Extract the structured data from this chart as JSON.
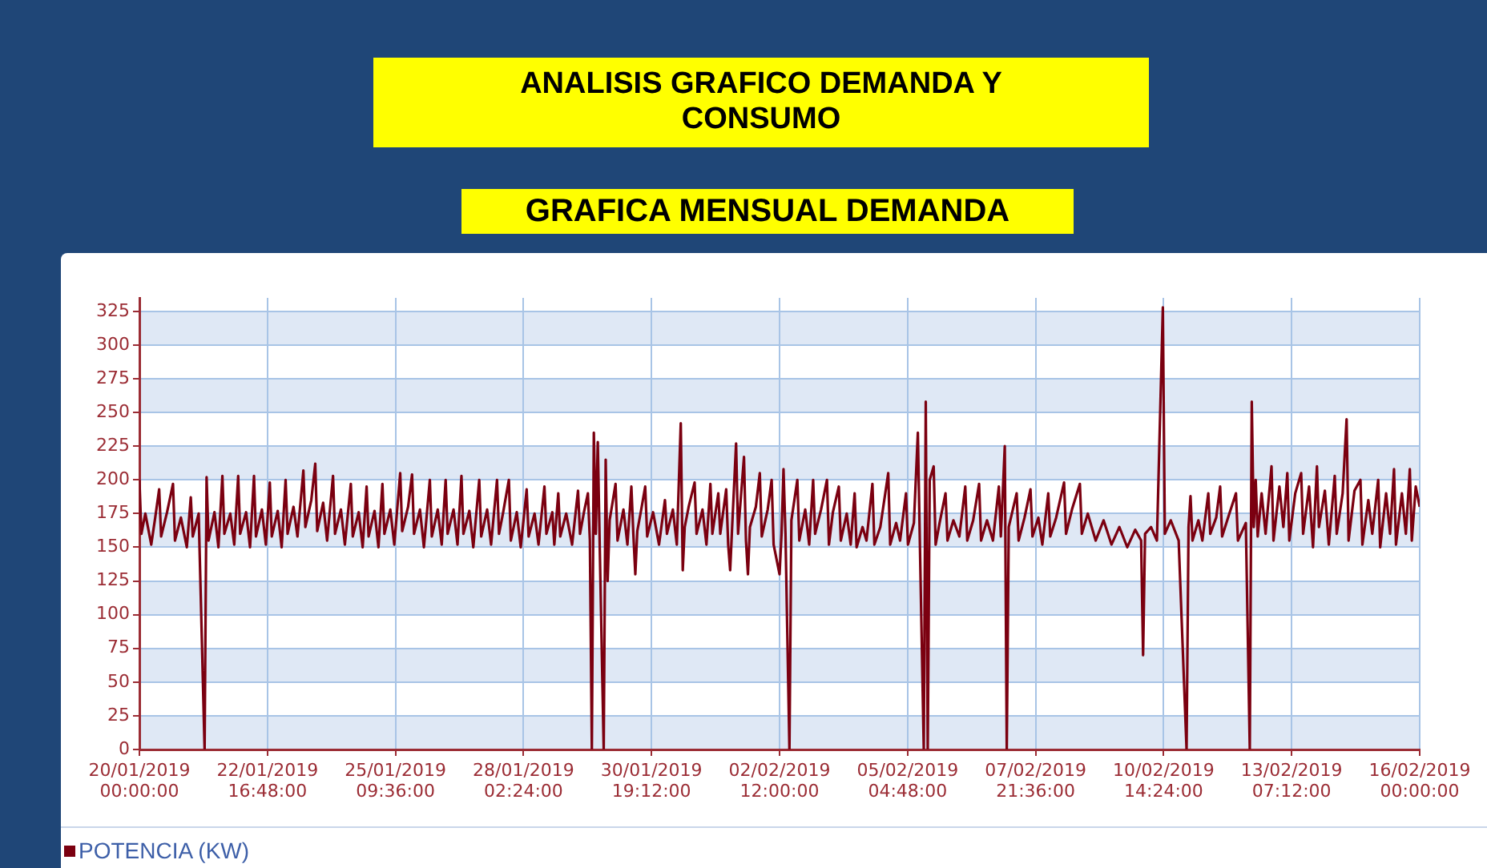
{
  "chart_data": {
    "type": "line",
    "title": "ANALISIS GRAFICO DEMANDA Y CONSUMO",
    "subtitle": "GRAFICA MENSUAL DEMANDA",
    "xlim": [
      "2019-01-20T00:00",
      "2019-02-16T00:00"
    ],
    "ylim": [
      0,
      335
    ],
    "xticks": [
      {
        "value": "2019-01-20T00:00",
        "label": "20/01/2019 00:00:00"
      },
      {
        "value": "2019-01-22T16:48",
        "label": "22/01/2019 16:48:00"
      },
      {
        "value": "2019-01-25T09:36",
        "label": "25/01/2019 09:36:00"
      },
      {
        "value": "2019-01-28T02:24",
        "label": "28/01/2019 02:24:00"
      },
      {
        "value": "2019-01-30T19:12",
        "label": "30/01/2019 19:12:00"
      },
      {
        "value": "2019-02-02T12:00",
        "label": "02/02/2019 12:00:00"
      },
      {
        "value": "2019-02-05T04:48",
        "label": "05/02/2019 04:48:00"
      },
      {
        "value": "2019-02-07T21:36",
        "label": "07/02/2019 21:36:00"
      },
      {
        "value": "2019-02-10T14:24",
        "label": "10/02/2019 14:24:00"
      },
      {
        "value": "2019-02-13T07:12",
        "label": "13/02/2019 07:12:00"
      },
      {
        "value": "2019-02-16T00:00",
        "label": "16/02/2019 00:00:00"
      }
    ],
    "yticks": [
      0,
      25,
      50,
      75,
      100,
      125,
      150,
      175,
      200,
      225,
      250,
      275,
      300,
      325
    ],
    "grid": true,
    "legend": "bottom",
    "marker": "none",
    "line_style": "solid",
    "x": [
      "2019-01-20T00:00",
      "2019-01-20T01:00",
      "2019-01-20T03:00",
      "2019-01-20T06:00",
      "2019-01-20T08:00",
      "2019-01-20T10:00",
      "2019-01-20T11:00",
      "2019-01-20T14:00",
      "2019-01-20T17:00",
      "2019-01-20T18:00",
      "2019-01-20T21:00",
      "2019-01-21T00:00",
      "2019-01-21T02:00",
      "2019-01-21T03:00",
      "2019-01-21T06:00",
      "2019-01-21T09:00",
      "2019-01-21T10:00",
      "2019-01-21T11:00",
      "2019-01-21T14:00",
      "2019-01-21T16:00",
      "2019-01-21T18:00",
      "2019-01-21T19:00",
      "2019-01-21T22:00",
      "2019-01-22T00:00",
      "2019-01-22T02:00",
      "2019-01-22T03:00",
      "2019-01-22T06:00",
      "2019-01-22T08:00",
      "2019-01-22T10:00",
      "2019-01-22T11:00",
      "2019-01-22T14:00",
      "2019-01-22T16:00",
      "2019-01-22T18:00",
      "2019-01-22T19:00",
      "2019-01-22T22:00",
      "2019-01-23T00:00",
      "2019-01-23T02:00",
      "2019-01-23T03:00",
      "2019-01-23T06:00",
      "2019-01-23T08:00",
      "2019-01-23T11:00",
      "2019-01-23T12:00",
      "2019-01-23T15:00",
      "2019-01-23T17:00",
      "2019-01-23T18:00",
      "2019-01-23T21:00",
      "2019-01-23T23:00",
      "2019-01-24T02:00",
      "2019-01-24T03:00",
      "2019-01-24T06:00",
      "2019-01-24T08:00",
      "2019-01-24T11:00",
      "2019-01-24T12:00",
      "2019-01-24T15:00",
      "2019-01-24T17:00",
      "2019-01-24T19:00",
      "2019-01-24T20:00",
      "2019-01-24T23:00",
      "2019-01-25T01:00",
      "2019-01-25T03:00",
      "2019-01-25T04:00",
      "2019-01-25T07:00",
      "2019-01-25T09:00",
      "2019-01-25T12:00",
      "2019-01-25T13:00",
      "2019-01-25T16:00",
      "2019-01-25T18:00",
      "2019-01-25T19:00",
      "2019-01-25T22:00",
      "2019-01-26T00:00",
      "2019-01-26T03:00",
      "2019-01-26T04:00",
      "2019-01-26T07:00",
      "2019-01-26T09:00",
      "2019-01-26T11:00",
      "2019-01-26T12:00",
      "2019-01-26T15:00",
      "2019-01-26T17:00",
      "2019-01-26T19:00",
      "2019-01-26T20:00",
      "2019-01-26T23:00",
      "2019-01-27T01:00",
      "2019-01-27T04:00",
      "2019-01-27T05:00",
      "2019-01-27T08:00",
      "2019-01-27T10:00",
      "2019-01-27T13:00",
      "2019-01-27T14:00",
      "2019-01-27T16:00",
      "2019-01-27T19:00",
      "2019-01-27T20:00",
      "2019-01-27T23:00",
      "2019-01-28T01:00",
      "2019-01-28T04:00",
      "2019-01-28T05:00",
      "2019-01-28T08:00",
      "2019-01-28T10:00",
      "2019-01-28T13:00",
      "2019-01-28T14:00",
      "2019-01-28T17:00",
      "2019-01-28T18:00",
      "2019-01-28T20:00",
      "2019-01-28T21:00",
      "2019-01-29T00:00",
      "2019-01-29T03:00",
      "2019-01-29T06:00",
      "2019-01-29T07:00",
      "2019-01-29T09:00",
      "2019-01-29T11:00",
      "2019-01-29T12:00",
      "2019-01-29T13:00",
      "2019-01-29T14:00",
      "2019-01-29T15:00",
      "2019-01-29T16:00",
      "2019-01-29T17:00",
      "2019-01-29T19:00",
      "2019-01-29T20:00",
      "2019-01-29T21:00",
      "2019-01-29T22:00",
      "2019-01-30T01:00",
      "2019-01-30T02:00",
      "2019-01-30T05:00",
      "2019-01-30T07:00",
      "2019-01-30T09:00",
      "2019-01-30T10:00",
      "2019-01-30T11:00",
      "2019-01-30T12:00",
      "2019-01-30T14:00",
      "2019-01-30T16:00",
      "2019-01-30T17:00",
      "2019-01-30T20:00",
      "2019-01-30T23:00",
      "2019-01-31T02:00",
      "2019-01-31T03:00",
      "2019-01-31T06:00",
      "2019-01-31T08:00",
      "2019-01-31T10:00",
      "2019-01-31T11:00",
      "2019-01-31T12:00",
      "2019-01-31T14:00",
      "2019-01-31T17:00",
      "2019-01-31T18:00",
      "2019-01-31T21:00",
      "2019-01-31T23:00",
      "2019-02-01T01:00",
      "2019-02-01T02:00",
      "2019-02-01T05:00",
      "2019-02-01T06:00",
      "2019-02-01T09:00",
      "2019-02-01T10:00",
      "2019-02-01T11:00",
      "2019-02-01T12:00",
      "2019-02-01T14:00",
      "2019-02-01T15:00",
      "2019-02-01T18:00",
      "2019-02-01T19:00",
      "2019-02-01T20:00",
      "2019-02-01T21:00",
      "2019-02-02T00:00",
      "2019-02-02T02:00",
      "2019-02-02T03:00",
      "2019-02-02T06:00",
      "2019-02-02T08:00",
      "2019-02-02T09:00",
      "2019-02-02T12:00",
      "2019-02-02T13:00",
      "2019-02-02T14:00",
      "2019-02-02T15:00",
      "2019-02-02T17:00",
      "2019-02-02T18:00",
      "2019-02-02T21:00",
      "2019-02-02T22:00",
      "2019-02-03T01:00",
      "2019-02-03T03:00",
      "2019-02-03T05:00",
      "2019-02-03T06:00",
      "2019-02-03T09:00",
      "2019-02-03T12:00",
      "2019-02-03T13:00",
      "2019-02-03T15:00",
      "2019-02-03T18:00",
      "2019-02-03T19:00",
      "2019-02-03T22:00",
      "2019-02-04T00:00",
      "2019-02-04T02:00",
      "2019-02-04T03:00",
      "2019-02-04T06:00",
      "2019-02-04T08:00",
      "2019-02-04T11:00",
      "2019-02-04T12:00",
      "2019-02-04T15:00",
      "2019-02-04T19:00",
      "2019-02-04T20:00",
      "2019-02-04T23:00",
      "2019-02-05T01:00",
      "2019-02-05T04:00",
      "2019-02-05T05:00",
      "2019-02-05T08:00",
      "2019-02-05T10:00",
      "2019-02-05T11:00",
      "2019-02-05T13:00",
      "2019-02-05T14:00",
      "2019-02-05T15:00",
      "2019-02-05T16:00",
      "2019-02-05T18:00",
      "2019-02-05T19:00",
      "2019-02-05T21:00",
      "2019-02-06T00:00",
      "2019-02-06T01:00",
      "2019-02-06T04:00",
      "2019-02-06T07:00",
      "2019-02-06T10:00",
      "2019-02-06T11:00",
      "2019-02-06T14:00",
      "2019-02-06T17:00",
      "2019-02-06T18:00",
      "2019-02-06T21:00",
      "2019-02-07T00:00",
      "2019-02-07T03:00",
      "2019-02-07T04:00",
      "2019-02-07T06:00",
      "2019-02-07T07:00",
      "2019-02-07T08:00",
      "2019-02-07T12:00",
      "2019-02-07T13:00",
      "2019-02-07T16:00",
      "2019-02-07T19:00",
      "2019-02-07T20:00",
      "2019-02-07T23:00",
      "2019-02-08T01:00",
      "2019-02-08T04:00",
      "2019-02-08T05:00",
      "2019-02-08T08:00",
      "2019-02-08T12:00",
      "2019-02-08T13:00",
      "2019-02-08T16:00",
      "2019-02-08T20:00",
      "2019-02-08T21:00",
      "2019-02-09T00:00",
      "2019-02-09T04:00",
      "2019-02-09T08:00",
      "2019-02-09T12:00",
      "2019-02-09T16:00",
      "2019-02-09T20:00",
      "2019-02-10T00:00",
      "2019-02-10T03:00",
      "2019-02-10T04:00",
      "2019-02-10T05:00",
      "2019-02-10T08:00",
      "2019-02-10T11:00",
      "2019-02-10T14:00",
      "2019-02-10T15:00",
      "2019-02-10T18:00",
      "2019-02-10T22:00",
      "2019-02-11T02:00",
      "2019-02-11T03:00",
      "2019-02-11T04:00",
      "2019-02-11T05:00",
      "2019-02-11T08:00",
      "2019-02-11T10:00",
      "2019-02-11T13:00",
      "2019-02-11T14:00",
      "2019-02-11T17:00",
      "2019-02-11T19:00",
      "2019-02-11T20:00",
      "2019-02-11T23:00",
      "2019-02-12T03:00",
      "2019-02-12T04:00",
      "2019-02-12T08:00",
      "2019-02-12T10:00",
      "2019-02-12T11:00",
      "2019-02-12T12:00",
      "2019-02-12T13:00",
      "2019-02-12T14:00",
      "2019-02-12T16:00",
      "2019-02-12T18:00",
      "2019-02-12T21:00",
      "2019-02-12T22:00",
      "2019-02-13T01:00",
      "2019-02-13T03:00",
      "2019-02-13T05:00",
      "2019-02-13T06:00",
      "2019-02-13T09:00",
      "2019-02-13T12:00",
      "2019-02-13T13:00",
      "2019-02-13T16:00",
      "2019-02-13T18:00",
      "2019-02-13T20:00",
      "2019-02-13T21:00",
      "2019-02-14T00:00",
      "2019-02-14T02:00",
      "2019-02-14T05:00",
      "2019-02-14T06:00",
      "2019-02-14T09:00",
      "2019-02-14T11:00",
      "2019-02-14T12:00",
      "2019-02-14T15:00",
      "2019-02-14T18:00",
      "2019-02-14T19:00",
      "2019-02-14T22:00",
      "2019-02-15T00:00",
      "2019-02-15T03:00",
      "2019-02-15T04:00",
      "2019-02-15T07:00",
      "2019-02-15T09:00",
      "2019-02-15T11:00",
      "2019-02-15T12:00",
      "2019-02-15T15:00",
      "2019-02-15T17:00",
      "2019-02-15T19:00",
      "2019-02-15T20:00",
      "2019-02-15T22:00",
      "2019-02-16T00:00"
    ],
    "series": [
      {
        "name": "POTENCIA (KW)",
        "color": "#7b0010",
        "values": [
          200,
          160,
          175,
          152,
          172,
          193,
          158,
          176,
          197,
          155,
          172,
          150,
          187,
          158,
          175,
          0,
          202,
          155,
          176,
          150,
          203,
          160,
          175,
          152,
          203,
          160,
          176,
          150,
          203,
          158,
          178,
          152,
          198,
          158,
          177,
          150,
          200,
          160,
          180,
          158,
          207,
          165,
          185,
          212,
          162,
          183,
          155,
          203,
          160,
          178,
          152,
          197,
          158,
          176,
          150,
          195,
          158,
          177,
          150,
          197,
          160,
          178,
          152,
          205,
          162,
          180,
          204,
          160,
          178,
          150,
          200,
          158,
          178,
          152,
          200,
          160,
          178,
          152,
          203,
          160,
          177,
          150,
          200,
          158,
          178,
          152,
          200,
          160,
          175,
          200,
          155,
          176,
          150,
          193,
          158,
          175,
          152,
          195,
          160,
          176,
          152,
          190,
          158,
          175,
          152,
          192,
          160,
          176,
          190,
          155,
          0,
          235,
          160,
          228,
          150,
          0,
          215,
          125,
          170,
          197,
          155,
          178,
          152,
          195,
          160,
          130,
          162,
          178,
          195,
          158,
          176,
          152,
          185,
          160,
          178,
          152,
          242,
          133,
          165,
          180,
          198,
          160,
          178,
          152,
          197,
          160,
          190,
          160,
          193,
          152,
          133,
          165,
          227,
          160,
          217,
          155,
          130,
          165,
          180,
          205,
          158,
          178,
          200,
          152,
          130,
          160,
          208,
          160,
          0,
          170,
          200,
          155,
          178,
          152,
          200,
          160,
          178,
          200,
          152,
          176,
          195,
          155,
          175,
          152,
          190,
          150,
          165,
          155,
          197,
          152,
          165,
          205,
          152,
          168,
          155,
          190,
          152,
          168,
          235,
          155,
          0,
          258,
          0,
          200,
          210,
          152,
          168,
          190,
          155,
          170,
          158,
          195,
          155,
          170,
          197,
          155,
          170,
          155,
          195,
          158,
          225,
          0,
          165,
          190,
          155,
          172,
          193,
          158,
          172,
          152,
          190,
          158,
          172,
          198,
          160,
          178,
          197,
          160,
          175,
          155,
          170,
          152,
          165,
          150,
          163,
          155,
          70,
          160,
          165,
          155,
          328,
          160,
          170,
          155,
          0,
          165,
          188,
          155,
          170,
          155,
          190,
          160,
          172,
          195,
          158,
          172,
          190,
          155,
          168,
          0,
          258,
          165,
          200,
          158,
          190,
          160,
          210,
          155,
          195,
          165,
          205,
          155,
          190,
          205,
          160,
          195,
          150,
          210,
          165,
          192,
          152,
          203,
          160,
          190,
          245,
          155,
          192,
          200,
          152,
          185,
          160,
          200,
          150,
          190,
          160,
          208,
          152,
          190,
          160,
          208,
          155,
          195,
          180
        ]
      }
    ]
  }
}
